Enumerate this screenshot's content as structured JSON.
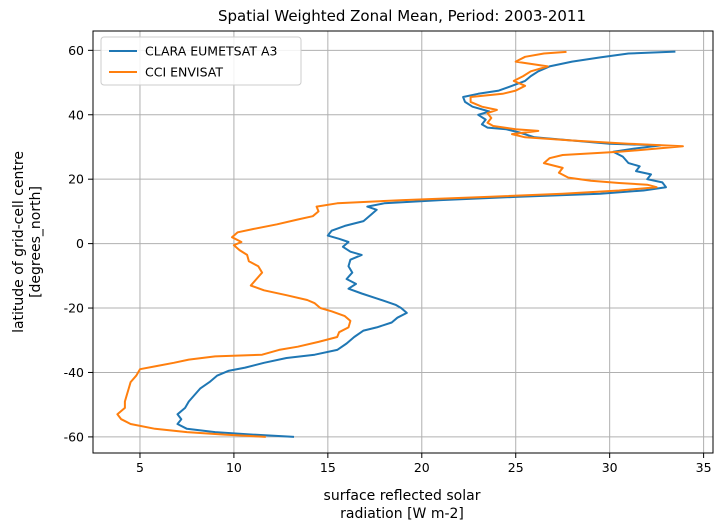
{
  "chart_data": {
    "type": "line",
    "title": "Spatial Weighted Zonal Mean, Period: 2003-2011",
    "xlabel": [
      "surface reflected solar",
      "radiation [W m-2]"
    ],
    "ylabel": [
      "latitude of grid-cell centre",
      "[degrees_north]"
    ],
    "xlim": [
      2.5,
      35.5
    ],
    "ylim": [
      -65,
      66
    ],
    "xticks": [
      5,
      10,
      15,
      20,
      25,
      30,
      35
    ],
    "yticks": [
      -60,
      -40,
      -20,
      0,
      20,
      40,
      60
    ],
    "grid": true,
    "legend_position": "upper-left",
    "series": [
      {
        "name": "CLARA EUMETSAT A3",
        "color": "#1f77b4",
        "points": [
          [
            13.2,
            -60
          ],
          [
            11.0,
            -59.3
          ],
          [
            9.0,
            -58.5
          ],
          [
            7.5,
            -57.5
          ],
          [
            7.0,
            -56
          ],
          [
            7.2,
            -54.5
          ],
          [
            7.0,
            -53
          ],
          [
            7.4,
            -51
          ],
          [
            7.6,
            -49
          ],
          [
            7.9,
            -47
          ],
          [
            8.2,
            -45
          ],
          [
            8.7,
            -43
          ],
          [
            9.1,
            -41
          ],
          [
            9.7,
            -39.5
          ],
          [
            10.6,
            -38.5
          ],
          [
            11.6,
            -37
          ],
          [
            12.8,
            -35.5
          ],
          [
            14.3,
            -34.5
          ],
          [
            15.5,
            -33
          ],
          [
            16.0,
            -31
          ],
          [
            16.4,
            -29
          ],
          [
            16.9,
            -27
          ],
          [
            17.6,
            -26
          ],
          [
            18.4,
            -24.5
          ],
          [
            18.7,
            -23
          ],
          [
            19.2,
            -21.5
          ],
          [
            18.9,
            -20
          ],
          [
            18.6,
            -19
          ],
          [
            18.1,
            -18
          ],
          [
            17.6,
            -17
          ],
          [
            16.8,
            -15.5
          ],
          [
            16.1,
            -14
          ],
          [
            16.5,
            -12.5
          ],
          [
            16.0,
            -11
          ],
          [
            16.3,
            -9
          ],
          [
            16.1,
            -7
          ],
          [
            16.2,
            -5
          ],
          [
            16.8,
            -3.5
          ],
          [
            16.2,
            -2.5
          ],
          [
            15.8,
            -1
          ],
          [
            16.1,
            0.5
          ],
          [
            15.6,
            1.5
          ],
          [
            15.0,
            2.5
          ],
          [
            15.2,
            4
          ],
          [
            15.9,
            5.5
          ],
          [
            16.9,
            7
          ],
          [
            17.3,
            9
          ],
          [
            17.6,
            10.5
          ],
          [
            17.1,
            11.5
          ],
          [
            18.0,
            12.5
          ],
          [
            21.0,
            13.5
          ],
          [
            25.0,
            14.5
          ],
          [
            29.5,
            15.5
          ],
          [
            31.8,
            16.5
          ],
          [
            33.0,
            17.5
          ],
          [
            32.8,
            19
          ],
          [
            32.0,
            20
          ],
          [
            32.2,
            21.5
          ],
          [
            31.4,
            22.5
          ],
          [
            31.6,
            24
          ],
          [
            31.0,
            25
          ],
          [
            30.7,
            27
          ],
          [
            30.2,
            28.5
          ],
          [
            31.3,
            29.5
          ],
          [
            32.7,
            30.5
          ],
          [
            30.0,
            31
          ],
          [
            28.0,
            32
          ],
          [
            26.0,
            33
          ],
          [
            25.2,
            34.5
          ],
          [
            24.5,
            35.5
          ],
          [
            23.5,
            36
          ],
          [
            23.2,
            37
          ],
          [
            23.4,
            38.5
          ],
          [
            23.0,
            40
          ],
          [
            23.6,
            41
          ],
          [
            22.7,
            42.5
          ],
          [
            22.3,
            44
          ],
          [
            22.2,
            45.5
          ],
          [
            23.0,
            46.5
          ],
          [
            24.1,
            47.5
          ],
          [
            24.8,
            49
          ],
          [
            25.5,
            50.5
          ],
          [
            25.8,
            52
          ],
          [
            26.2,
            53.5
          ],
          [
            26.8,
            55
          ],
          [
            28.0,
            56.5
          ],
          [
            29.5,
            57.8
          ],
          [
            31.0,
            59
          ],
          [
            33.5,
            59.6
          ]
        ]
      },
      {
        "name": "CCI ENVISAT",
        "color": "#ff7f0e",
        "points": [
          [
            11.7,
            -60
          ],
          [
            9.5,
            -59.3
          ],
          [
            7.5,
            -58.5
          ],
          [
            5.8,
            -57.5
          ],
          [
            4.5,
            -56
          ],
          [
            4.0,
            -54.5
          ],
          [
            3.8,
            -53
          ],
          [
            4.2,
            -51
          ],
          [
            4.2,
            -49
          ],
          [
            4.3,
            -47
          ],
          [
            4.4,
            -45
          ],
          [
            4.5,
            -43
          ],
          [
            4.8,
            -41
          ],
          [
            5.0,
            -39
          ],
          [
            5.9,
            -38
          ],
          [
            6.8,
            -37
          ],
          [
            7.6,
            -36
          ],
          [
            9.0,
            -35
          ],
          [
            11.5,
            -34.5
          ],
          [
            12.4,
            -33
          ],
          [
            13.4,
            -32
          ],
          [
            14.5,
            -30.5
          ],
          [
            15.5,
            -29
          ],
          [
            15.6,
            -27.5
          ],
          [
            16.1,
            -26
          ],
          [
            16.2,
            -24
          ],
          [
            15.9,
            -22.5
          ],
          [
            15.2,
            -21
          ],
          [
            14.6,
            -20
          ],
          [
            14.3,
            -18.5
          ],
          [
            13.9,
            -17.5
          ],
          [
            12.8,
            -16
          ],
          [
            11.6,
            -14.5
          ],
          [
            10.9,
            -13
          ],
          [
            11.2,
            -11
          ],
          [
            11.5,
            -9
          ],
          [
            11.3,
            -7
          ],
          [
            10.8,
            -5.5
          ],
          [
            10.7,
            -3.5
          ],
          [
            10.3,
            -2
          ],
          [
            10.0,
            -0.5
          ],
          [
            10.4,
            0.5
          ],
          [
            9.9,
            2
          ],
          [
            10.2,
            3.5
          ],
          [
            11.0,
            4.5
          ],
          [
            12.3,
            6
          ],
          [
            13.4,
            7.5
          ],
          [
            14.2,
            8.5
          ],
          [
            14.5,
            10
          ],
          [
            14.4,
            11.5
          ],
          [
            15.5,
            12.5
          ],
          [
            19.0,
            13.5
          ],
          [
            23.5,
            14.5
          ],
          [
            27.5,
            15.5
          ],
          [
            30.5,
            16.5
          ],
          [
            32.5,
            17.5
          ],
          [
            32.0,
            18.3
          ],
          [
            30.5,
            18.8
          ],
          [
            29.0,
            19.5
          ],
          [
            27.8,
            20.5
          ],
          [
            27.3,
            22
          ],
          [
            27.5,
            23.5
          ],
          [
            26.5,
            25
          ],
          [
            26.8,
            26.5
          ],
          [
            27.5,
            27.5
          ],
          [
            29.0,
            28
          ],
          [
            30.5,
            28.5
          ],
          [
            31.5,
            29
          ],
          [
            33.9,
            30.2
          ],
          [
            31.0,
            31
          ],
          [
            28.0,
            32
          ],
          [
            25.5,
            33
          ],
          [
            24.8,
            34
          ],
          [
            26.2,
            35
          ],
          [
            25.0,
            35.5
          ],
          [
            23.8,
            36.5
          ],
          [
            23.5,
            37.5
          ],
          [
            23.7,
            39
          ],
          [
            23.5,
            40.5
          ],
          [
            24.0,
            41.5
          ],
          [
            23.2,
            42.5
          ],
          [
            22.6,
            44
          ],
          [
            22.6,
            45.5
          ],
          [
            24.3,
            46.5
          ],
          [
            25.0,
            47.5
          ],
          [
            25.5,
            49
          ],
          [
            24.9,
            50.5
          ],
          [
            25.4,
            52
          ],
          [
            25.8,
            53.5
          ],
          [
            26.7,
            55
          ],
          [
            25.0,
            56.5
          ],
          [
            25.5,
            58
          ],
          [
            26.5,
            59
          ],
          [
            27.7,
            59.5
          ]
        ]
      }
    ]
  }
}
